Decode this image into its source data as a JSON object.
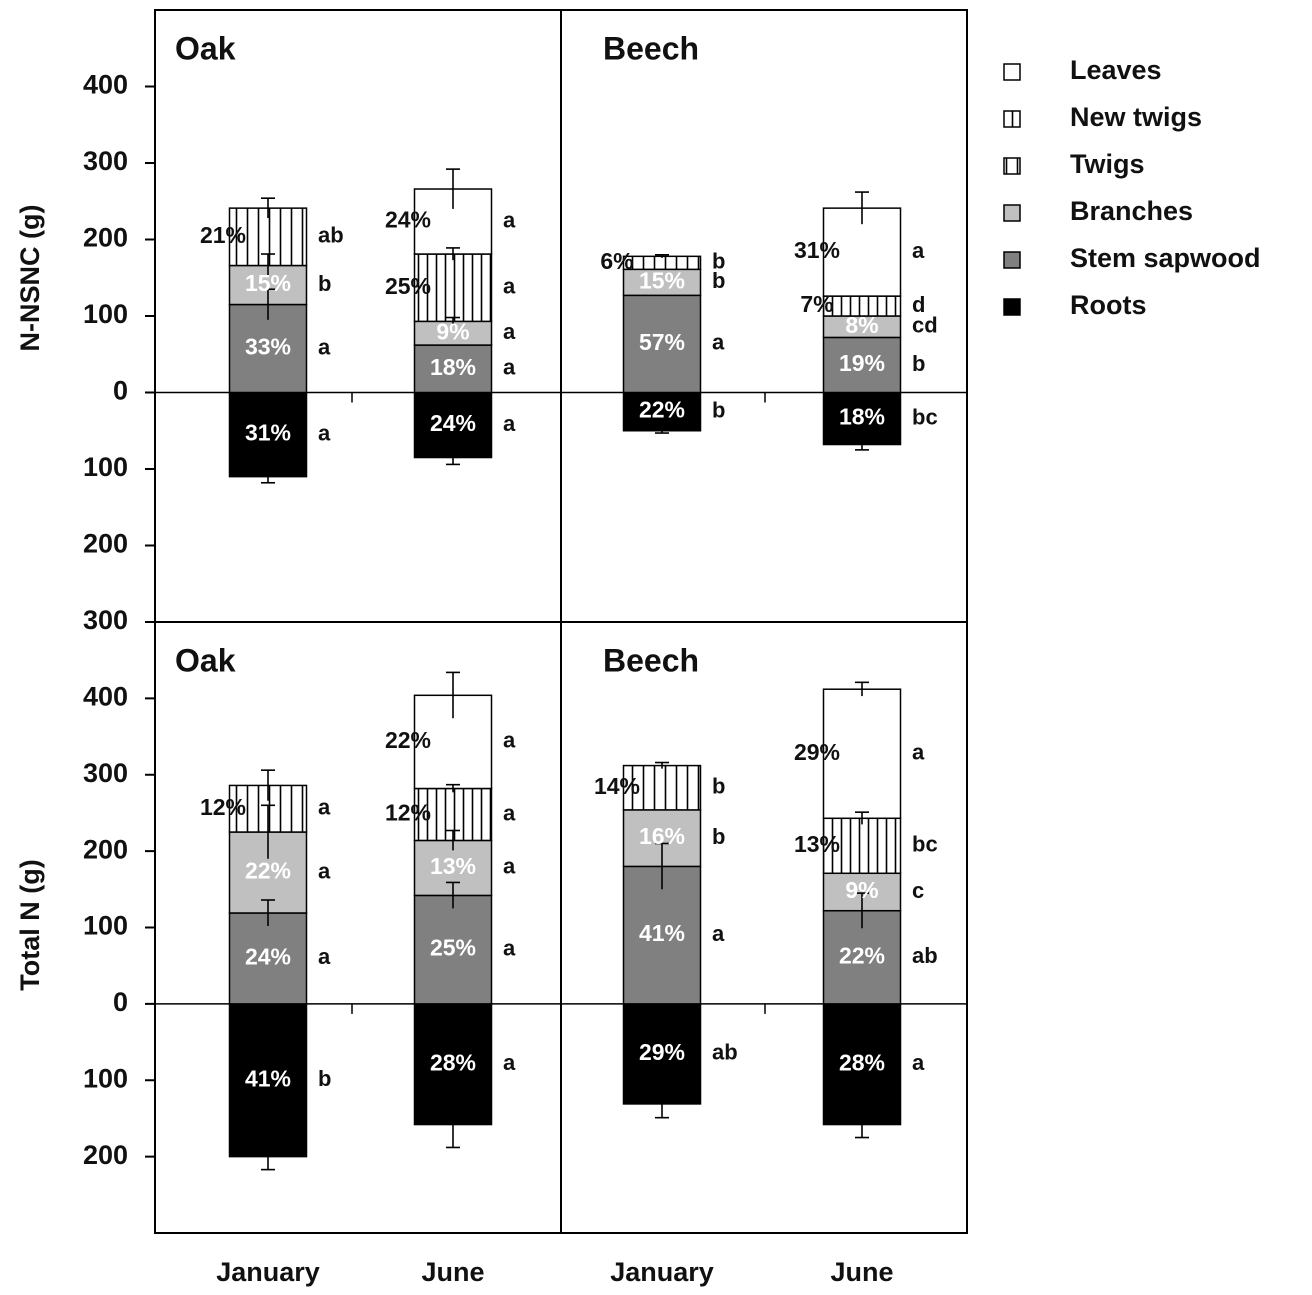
{
  "chart_data": [
    {
      "type": "bar",
      "stacked": true,
      "ylabel": "N-NSNC (g)",
      "panel_titles": [
        "Oak",
        "Beech"
      ],
      "ylim": [
        -300,
        500
      ],
      "yticks": [
        400,
        300,
        200,
        100,
        0,
        {
          "value": -100,
          "label": "100"
        },
        {
          "value": -200,
          "label": "200"
        },
        {
          "value": -300,
          "label": "300"
        }
      ],
      "legend": "right",
      "series": [
        {
          "name": "Leaves",
          "color": "#ffffff",
          "pattern": "none",
          "values": [
            null,
            85,
            null,
            115
          ],
          "errors": [
            null,
            26,
            null,
            21
          ],
          "percent_labels": [
            null,
            "24%",
            null,
            "31%"
          ],
          "letters": [
            null,
            "a",
            null,
            "a"
          ]
        },
        {
          "name": "New twigs",
          "color": "#ffffff",
          "pattern": "vertical",
          "values": [
            null,
            88,
            null,
            26
          ],
          "errors": [
            null,
            8,
            null,
            null
          ],
          "percent_labels": [
            null,
            "25%",
            null,
            "7%"
          ],
          "letters": [
            null,
            "a",
            null,
            "d"
          ]
        },
        {
          "name": "Twigs",
          "color": "#ffffff",
          "pattern": "vertical-wide",
          "values": [
            75,
            null,
            17,
            null
          ],
          "errors": [
            13,
            null,
            2,
            null
          ],
          "percent_labels": [
            "21%",
            null,
            "6%",
            null
          ],
          "letters": [
            "ab",
            null,
            "b",
            null
          ]
        },
        {
          "name": "Branches",
          "color": "#c0c0c0",
          "pattern": "none",
          "values": [
            51,
            31,
            34,
            28
          ],
          "errors": [
            15,
            5,
            null,
            null
          ],
          "percent_labels": [
            "15%",
            "9%",
            "15%",
            "8%"
          ],
          "letters": [
            "b",
            "a",
            "b",
            "cd"
          ]
        },
        {
          "name": "Stem sapwood",
          "color": "#808080",
          "pattern": "none",
          "values": [
            115,
            62,
            127,
            72
          ],
          "errors": [
            20,
            null,
            null,
            null
          ],
          "percent_labels": [
            "33%",
            "18%",
            "57%",
            "19%"
          ],
          "letters": [
            "a",
            "a",
            "a",
            "b"
          ]
        },
        {
          "name": "Roots",
          "color": "#000000",
          "pattern": "none",
          "values": [
            -110,
            -85,
            -50,
            -68
          ],
          "errors": [
            8,
            9,
            3,
            7
          ],
          "percent_labels": [
            "31%",
            "24%",
            "22%",
            "18%"
          ],
          "letters": [
            "a",
            "a",
            "b",
            "bc"
          ]
        }
      ]
    },
    {
      "type": "bar",
      "stacked": true,
      "ylabel": "Total N (g)",
      "panel_titles": [
        "Oak",
        "Beech"
      ],
      "categories": [
        "January",
        "June",
        "January",
        "June"
      ],
      "ylim": [
        -300,
        500
      ],
      "yticks": [
        400,
        300,
        200,
        100,
        0,
        {
          "value": -100,
          "label": "100"
        },
        {
          "value": -200,
          "label": "200"
        }
      ],
      "series": [
        {
          "values": [
            null,
            122,
            null,
            169
          ],
          "errors": [
            null,
            30,
            null,
            9
          ],
          "percent_labels": [
            null,
            "22%",
            null,
            "29%"
          ],
          "letters": [
            null,
            "a",
            null,
            "a"
          ]
        },
        {
          "values": [
            null,
            68,
            null,
            72
          ],
          "errors": [
            null,
            5,
            null,
            8
          ],
          "percent_labels": [
            null,
            "12%",
            null,
            "13%"
          ],
          "letters": [
            null,
            "a",
            null,
            "bc"
          ]
        },
        {
          "values": [
            61,
            null,
            58,
            null
          ],
          "errors": [
            20,
            null,
            4,
            null
          ],
          "percent_labels": [
            "12%",
            null,
            "14%",
            null
          ],
          "letters": [
            "a",
            null,
            "b",
            null
          ]
        },
        {
          "values": [
            106,
            72,
            74,
            49
          ],
          "errors": [
            35,
            13,
            null,
            null
          ],
          "percent_labels": [
            "22%",
            "13%",
            "16%",
            "9%"
          ],
          "letters": [
            "a",
            "a",
            "b",
            "c"
          ]
        },
        {
          "values": [
            119,
            142,
            180,
            122
          ],
          "errors": [
            17,
            17,
            30,
            23
          ],
          "percent_labels": [
            "24%",
            "25%",
            "41%",
            "22%"
          ],
          "letters": [
            "a",
            "a",
            "a",
            "ab"
          ]
        },
        {
          "values": [
            -200,
            -158,
            -131,
            -158
          ],
          "errors": [
            17,
            30,
            18,
            17
          ],
          "percent_labels": [
            "41%",
            "28%",
            "29%",
            "28%"
          ],
          "letters": [
            "b",
            "a",
            "ab",
            "a"
          ]
        }
      ]
    }
  ]
}
